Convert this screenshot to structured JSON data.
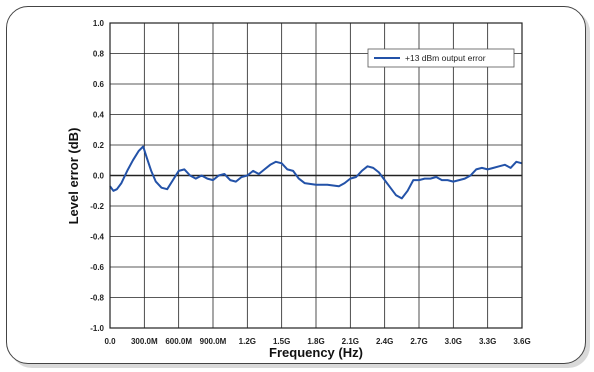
{
  "chart_data": {
    "type": "line",
    "title": "",
    "xlabel": "Frequency (Hz)",
    "ylabel": "Level error (dB)",
    "xlim": [
      0,
      3600
    ],
    "ylim": [
      -1.0,
      1.0
    ],
    "x_unit": "MHz",
    "grid": true,
    "legend_position": "top-right",
    "x_tick_values": [
      0,
      300,
      600,
      900,
      1200,
      1500,
      1800,
      2100,
      2400,
      2700,
      3000,
      3300,
      3600
    ],
    "x_tick_labels": [
      "0.0",
      "300.0M",
      "600.0M",
      "900.0M",
      "1.2G",
      "1.5G",
      "1.8G",
      "2.1G",
      "2.4G",
      "2.7G",
      "3.0G",
      "3.3G",
      "3.6G"
    ],
    "y_tick_values": [
      1.0,
      0.8,
      0.6,
      0.4,
      0.2,
      0.0,
      -0.2,
      -0.4,
      -0.6,
      -0.8,
      -1.0
    ],
    "y_tick_labels": [
      "1.0",
      "0.8",
      "0.6",
      "0.4",
      "0.2",
      "0.0",
      "-0.2",
      "-0.4",
      "-0.6",
      "-0.8",
      "-1.0"
    ],
    "series": [
      {
        "name": "+13 dBm output error",
        "color": "#2352a8",
        "x": [
          0,
          30,
          60,
          100,
          150,
          200,
          250,
          290,
          320,
          360,
          400,
          450,
          500,
          550,
          600,
          650,
          700,
          750,
          800,
          850,
          900,
          950,
          1000,
          1050,
          1100,
          1150,
          1200,
          1250,
          1300,
          1350,
          1400,
          1450,
          1500,
          1550,
          1600,
          1650,
          1700,
          1800,
          1900,
          2000,
          2050,
          2100,
          2150,
          2200,
          2250,
          2300,
          2350,
          2400,
          2450,
          2500,
          2550,
          2600,
          2650,
          2700,
          2750,
          2800,
          2850,
          2900,
          2950,
          3000,
          3050,
          3100,
          3150,
          3200,
          3250,
          3300,
          3350,
          3400,
          3450,
          3500,
          3550,
          3600
        ],
        "y": [
          -0.07,
          -0.1,
          -0.09,
          -0.05,
          0.03,
          0.1,
          0.16,
          0.19,
          0.12,
          0.03,
          -0.04,
          -0.08,
          -0.09,
          -0.03,
          0.03,
          0.04,
          0.0,
          -0.02,
          0.0,
          -0.02,
          -0.03,
          0.0,
          0.01,
          -0.03,
          -0.04,
          -0.01,
          0.0,
          0.03,
          0.01,
          0.04,
          0.07,
          0.09,
          0.08,
          0.04,
          0.03,
          -0.02,
          -0.05,
          -0.06,
          -0.06,
          -0.07,
          -0.05,
          -0.02,
          -0.01,
          0.03,
          0.06,
          0.05,
          0.02,
          -0.03,
          -0.08,
          -0.13,
          -0.15,
          -0.1,
          -0.03,
          -0.03,
          -0.02,
          -0.02,
          -0.01,
          -0.03,
          -0.03,
          -0.04,
          -0.03,
          -0.02,
          0.0,
          0.04,
          0.05,
          0.04,
          0.05,
          0.06,
          0.07,
          0.05,
          0.09,
          0.08
        ]
      }
    ]
  }
}
